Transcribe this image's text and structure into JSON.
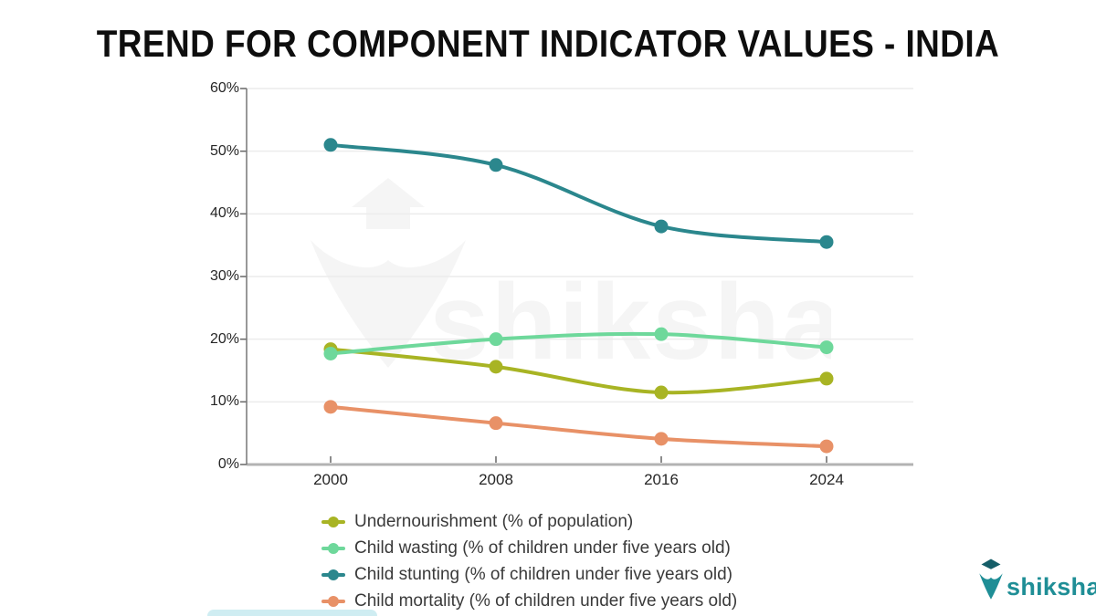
{
  "title": "TREND FOR COMPONENT INDICATOR VALUES - INDIA",
  "chart_data": {
    "type": "line",
    "title": "TREND FOR COMPONENT INDICATOR VALUES - INDIA",
    "x": [
      2000,
      2008,
      2016,
      2024
    ],
    "x_labels": [
      "2000",
      "2008",
      "2016",
      "2024"
    ],
    "y_ticks": [
      "60%",
      "50%",
      "40%",
      "30%",
      "20%",
      "10%",
      "0%"
    ],
    "ylim": [
      0,
      60
    ],
    "grid": true,
    "legend_position": "bottom-left",
    "series": [
      {
        "name": "Undernourishment (% of population)",
        "color": "#a8b424",
        "values": [
          18.4,
          15.6,
          11.5,
          13.7
        ]
      },
      {
        "name": "Child wasting (% of children under five years old)",
        "color": "#6ed89b",
        "values": [
          17.7,
          20.0,
          20.8,
          18.7
        ]
      },
      {
        "name": "Child stunting (% of children under five years old)",
        "color": "#2b878d",
        "values": [
          51.0,
          47.8,
          38.0,
          35.5
        ]
      },
      {
        "name": "Child mortality (% of children under five years old)",
        "color": "#e89167",
        "values": [
          9.2,
          6.6,
          4.1,
          2.9
        ]
      }
    ],
    "colors": {
      "gridline": "#ececec",
      "x_axis_line": "#b3b3b3",
      "y_axis_line": "#777777",
      "tick": "#666666"
    }
  },
  "watermark": {
    "text": "shiksha"
  },
  "brand": {
    "name": "shiksha",
    "color": "#1f8e96",
    "cap_color": "#155e68"
  }
}
